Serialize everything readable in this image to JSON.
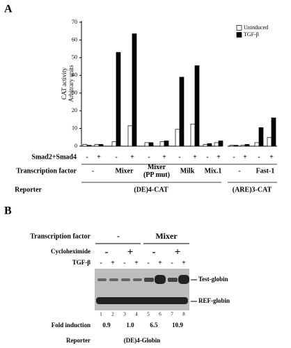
{
  "chart_data": {
    "type": "bar",
    "panel": "A",
    "ylabel": [
      "CAT activity",
      "Arbitrary units"
    ],
    "categories": [
      "-",
      "+",
      "-",
      "+",
      "-",
      "+",
      "-",
      "+",
      "-",
      "+",
      "-",
      "+",
      "-",
      "+"
    ],
    "series": [
      {
        "name": "Uninduced",
        "color": "#ffffff",
        "values": [
          1,
          1,
          2.5,
          11.5,
          2,
          2.5,
          9.5,
          12.5,
          1,
          2,
          0.5,
          0.5,
          2,
          5
        ]
      },
      {
        "name": "TGF-β",
        "color": "#000000",
        "values": [
          0.5,
          1,
          53,
          63.5,
          2,
          3,
          39,
          45.5,
          1.5,
          3,
          0.5,
          1,
          10.5,
          16
        ]
      }
    ],
    "ylim": [
      0,
      70
    ],
    "yticks": [
      0,
      10,
      20,
      30,
      40,
      50,
      60,
      70
    ],
    "grid": false,
    "legend": "upper right",
    "smad_label": "Smad2+Smad4",
    "factor_label": "Transcription factor",
    "factors": [
      "-",
      "Mixer",
      "Mixer (PP mut)",
      "Milk",
      "Mix.1",
      "-",
      "Fast-1"
    ],
    "reporter_label": "Reporter",
    "reporters": [
      "(DE)4-CAT",
      "(ARE)3-CAT"
    ]
  },
  "panel_b": {
    "panel": "B",
    "factor_label": "Transcription factor",
    "factors": [
      "-",
      "Mixer"
    ],
    "chx_label": "Cycloheximide",
    "chx": [
      "-",
      "+",
      "-",
      "+"
    ],
    "tgf_label": "TGF-β",
    "tgf": [
      "-",
      "+",
      "-",
      "+",
      "-",
      "+",
      "-",
      "+"
    ],
    "lanes": [
      "1",
      "2",
      "3",
      "4",
      "5",
      "6",
      "7",
      "8"
    ],
    "bands": [
      "Test-globin",
      "REF-globin"
    ],
    "fold_label": "Fold induction",
    "fold": [
      "0.9",
      "1.0",
      "6.5",
      "10.9"
    ],
    "reporter_label": "Reporter",
    "reporter": "(DE)4-Globin"
  }
}
